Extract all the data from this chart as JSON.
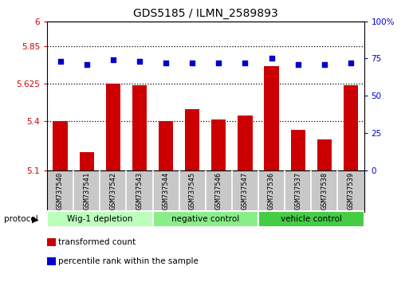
{
  "title": "GDS5185 / ILMN_2589893",
  "samples": [
    "GSM737540",
    "GSM737541",
    "GSM737542",
    "GSM737543",
    "GSM737544",
    "GSM737545",
    "GSM737546",
    "GSM737547",
    "GSM737536",
    "GSM737537",
    "GSM737538",
    "GSM737539"
  ],
  "bar_values": [
    5.4,
    5.21,
    5.625,
    5.615,
    5.4,
    5.47,
    5.41,
    5.43,
    5.73,
    5.345,
    5.29,
    5.615
  ],
  "dot_values": [
    73,
    71,
    74,
    73,
    72,
    72,
    72,
    72,
    75,
    71,
    71,
    72
  ],
  "ylim_left": [
    5.1,
    6.0
  ],
  "ylim_right": [
    0,
    100
  ],
  "yticks_left": [
    5.1,
    5.4,
    5.625,
    5.85,
    6.0
  ],
  "ytick_labels_left": [
    "5.1",
    "5.4",
    "5.625",
    "5.85",
    "6"
  ],
  "yticks_right": [
    0,
    25,
    50,
    75,
    100
  ],
  "ytick_labels_right": [
    "0",
    "25",
    "50",
    "75",
    "100%"
  ],
  "hlines": [
    5.85,
    5.625,
    5.4
  ],
  "bar_color": "#cc0000",
  "dot_color": "#0000cc",
  "groups": [
    {
      "label": "Wig-1 depletion",
      "start": 0,
      "end": 4,
      "color": "#bbffbb"
    },
    {
      "label": "negative control",
      "start": 4,
      "end": 8,
      "color": "#88ee88"
    },
    {
      "label": "vehicle control",
      "start": 8,
      "end": 12,
      "color": "#44cc44"
    }
  ],
  "protocol_label": "protocol",
  "legend_items": [
    {
      "color": "#cc0000",
      "label": "transformed count"
    },
    {
      "color": "#0000cc",
      "label": "percentile rank within the sample"
    }
  ],
  "tick_area_color": "#c8c8c8",
  "border_color": "#000000"
}
